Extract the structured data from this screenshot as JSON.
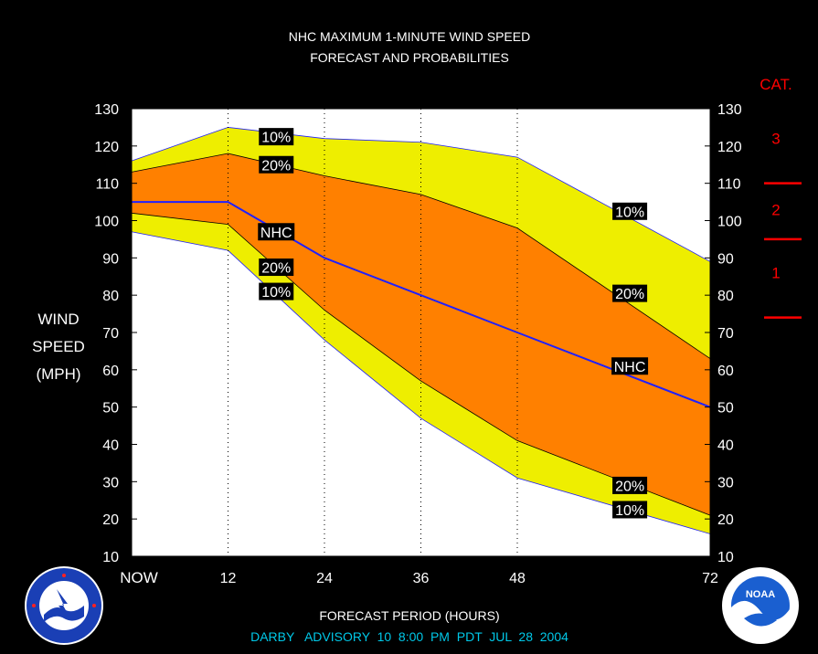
{
  "chart_data": {
    "type": "area",
    "title_lines": [
      "NHC MAXIMUM 1-MINUTE WIND SPEED",
      "FORECAST AND PROBABILITIES"
    ],
    "ylabel_lines": [
      "WIND",
      "SPEED",
      "(MPH)"
    ],
    "xlabel": "FORECAST PERIOD (HOURS)",
    "x": [
      0,
      12,
      24,
      36,
      48,
      72
    ],
    "x_tick_labels": [
      "NOW",
      "12",
      "24",
      "36",
      "48",
      "72"
    ],
    "ylim": [
      10,
      130
    ],
    "y_ticks": [
      10,
      20,
      30,
      40,
      50,
      60,
      70,
      80,
      90,
      100,
      110,
      120,
      130
    ],
    "band_x": [
      0,
      12,
      24,
      36,
      48,
      72
    ],
    "series": [
      {
        "name": "10%",
        "role": "upper-10",
        "values": [
          116,
          125,
          122,
          121,
          117,
          89
        ],
        "color": "#eeee00"
      },
      {
        "name": "20%",
        "role": "upper-20",
        "values": [
          113,
          118,
          112,
          107,
          98,
          63
        ],
        "color": "#ff8000"
      },
      {
        "name": "NHC",
        "role": "forecast",
        "values": [
          105,
          105,
          90,
          80,
          70,
          50
        ],
        "color": "#2020ff"
      },
      {
        "name": "20%",
        "role": "lower-20",
        "values": [
          102,
          99,
          76,
          57,
          41,
          21
        ],
        "color": "#ff8000"
      },
      {
        "name": "10%",
        "role": "lower-10",
        "values": [
          97,
          92,
          68,
          47,
          31,
          16
        ],
        "color": "#eeee00"
      }
    ],
    "band_labels": [
      {
        "text": "10%",
        "x": 18,
        "y": 122.5
      },
      {
        "text": "20%",
        "x": 18,
        "y": 115
      },
      {
        "text": "NHC",
        "x": 18,
        "y": 97
      },
      {
        "text": "20%",
        "x": 18,
        "y": 87.5
      },
      {
        "text": "10%",
        "x": 18,
        "y": 81
      },
      {
        "text": "10%",
        "x": 62,
        "y": 102.5
      },
      {
        "text": "20%",
        "x": 62,
        "y": 80.5
      },
      {
        "text": "NHC",
        "x": 62,
        "y": 61
      },
      {
        "text": "20%",
        "x": 62,
        "y": 29
      },
      {
        "text": "10%",
        "x": 62,
        "y": 22.5
      }
    ],
    "category_scale": {
      "title": "CAT.",
      "labels": [
        {
          "text": "3",
          "y": 122
        },
        {
          "text": "2",
          "y": 103
        },
        {
          "text": "1",
          "y": 86
        }
      ],
      "boundaries": [
        110,
        95,
        74
      ],
      "color": "#ff0000"
    },
    "vertical_dotted_gridlines_at": [
      12,
      24,
      36,
      48
    ],
    "advisory_line": "DARBY   ADVISORY  10  8:00  PM  PDT  JUL  28  2004",
    "colors": {
      "background": "#000000",
      "plot_background": "#ffffff",
      "outer_band": "#eeee00",
      "inner_band": "#ff8000",
      "forecast_line": "#2020ff",
      "category": "#ff0000",
      "advisory_text": "#00c8e8"
    },
    "logos": [
      {
        "name": "NATIONAL WEATHER SERVICE",
        "position": "bottom-left"
      },
      {
        "name": "NOAA",
        "position": "bottom-right"
      }
    ]
  }
}
